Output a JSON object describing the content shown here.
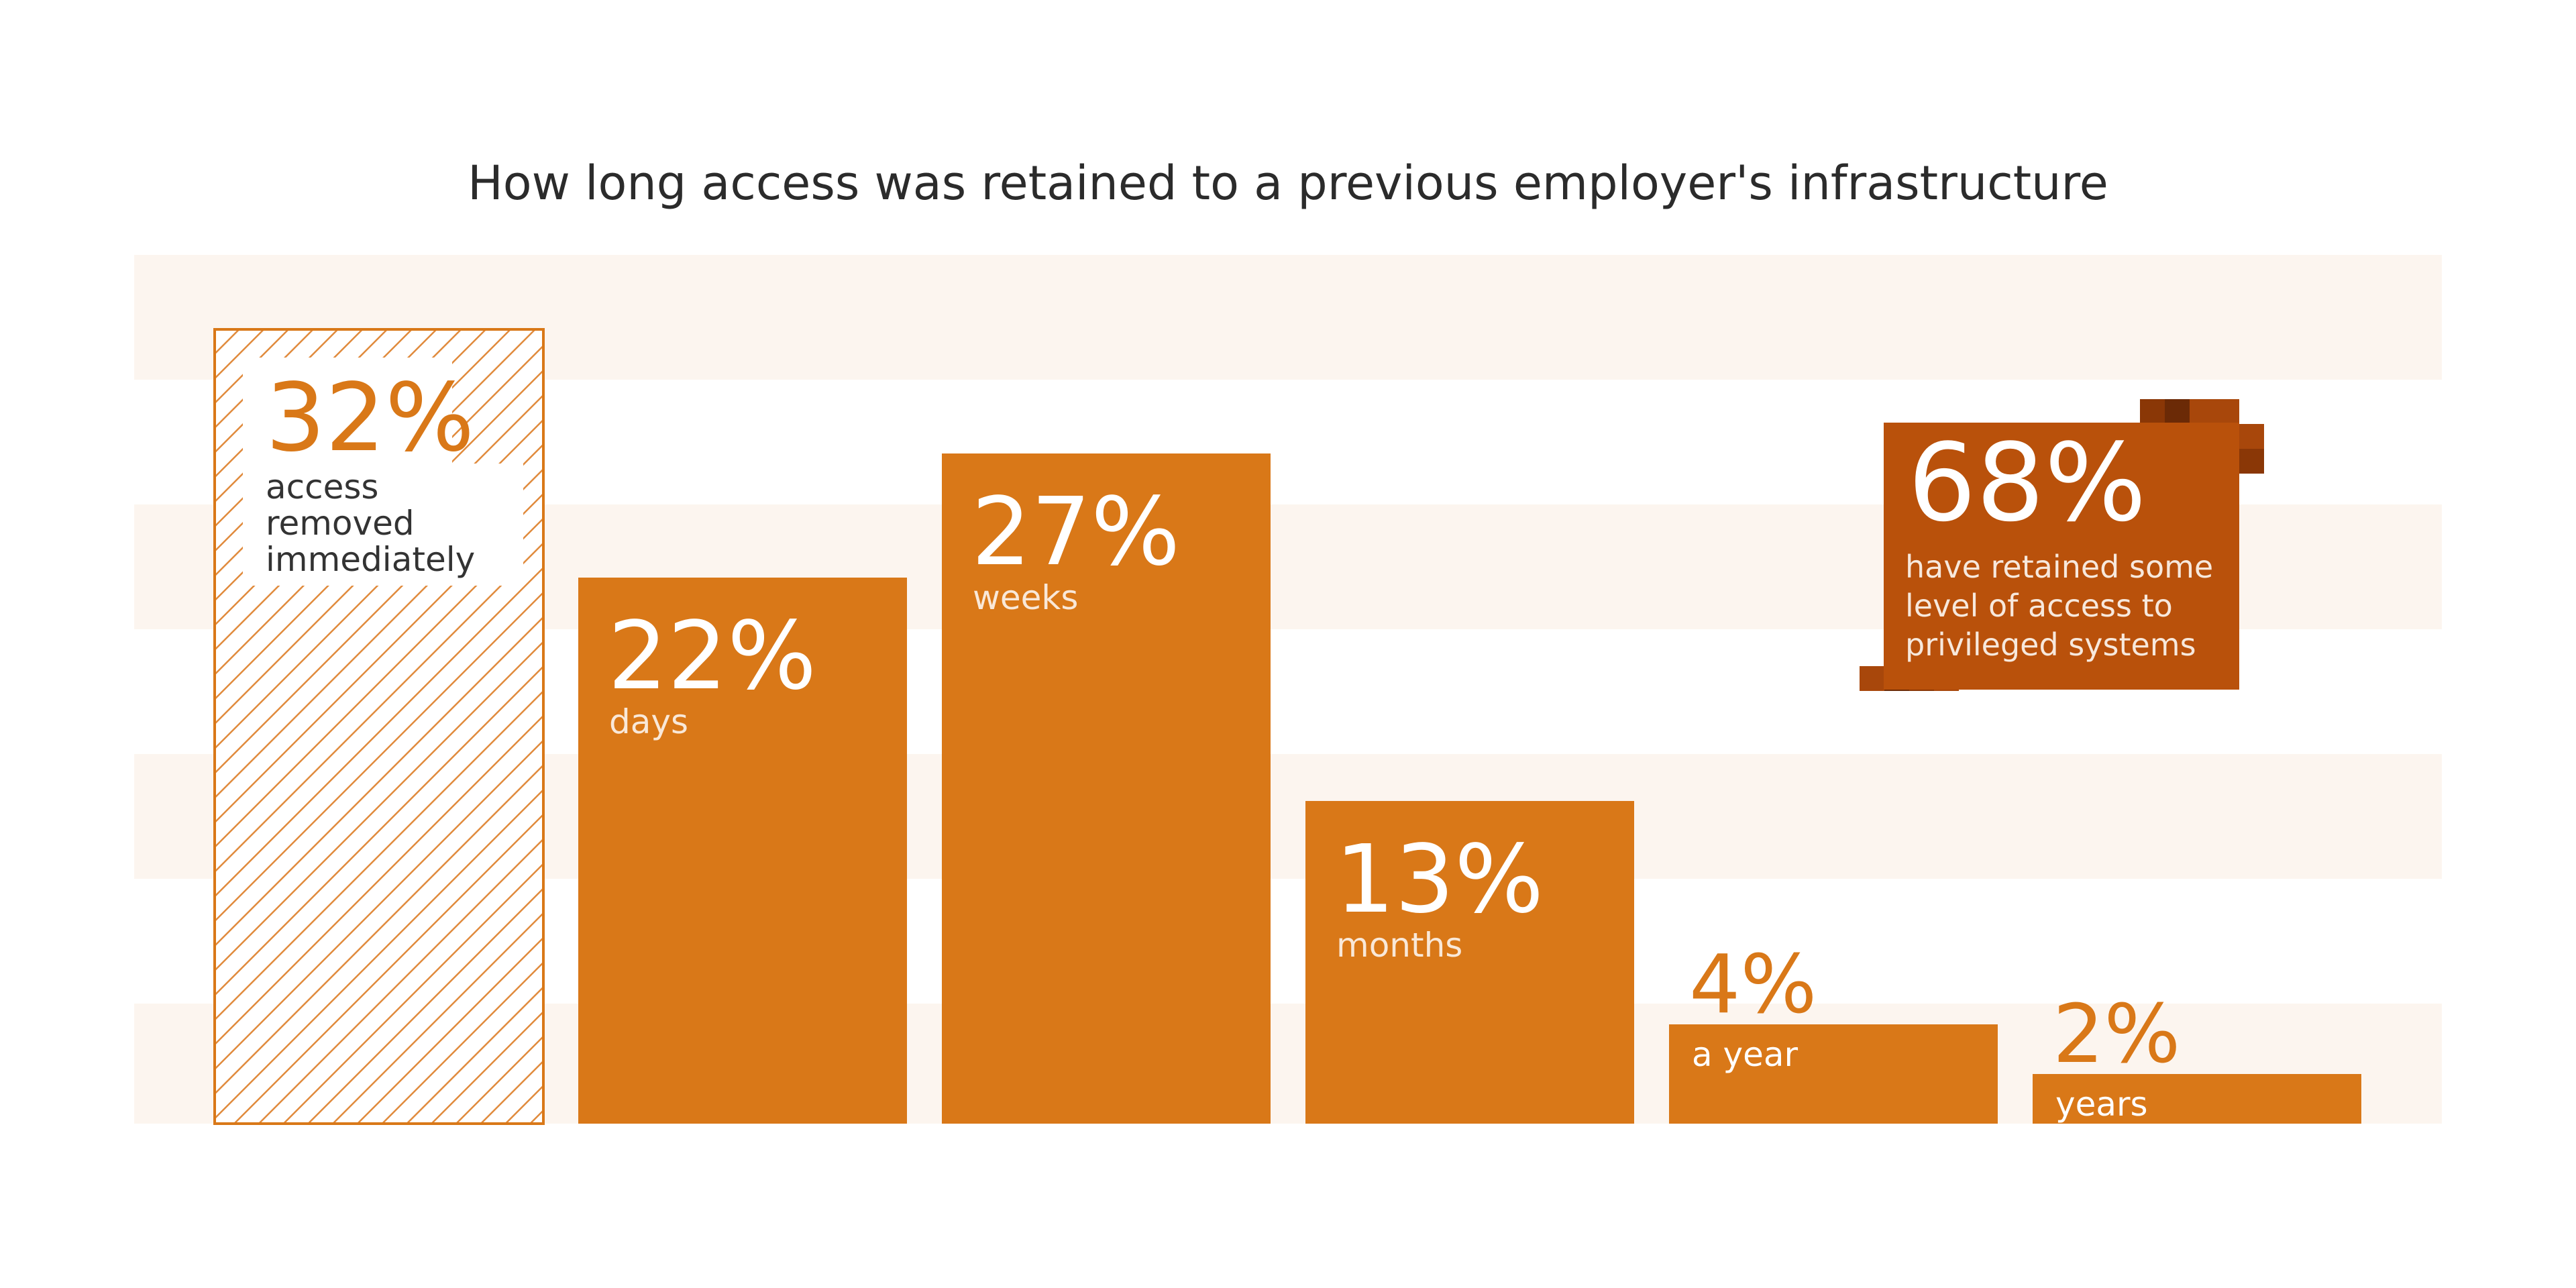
{
  "chart_data": {
    "type": "bar",
    "title": "How long access was retained to a previous employer's infrastructure",
    "xlabel": "",
    "ylabel": "",
    "ylim": [
      0,
      35
    ],
    "grid": "alternating horizontal bands",
    "categories": [
      "access removed immediately",
      "days",
      "weeks",
      "months",
      "a year",
      "years"
    ],
    "values": [
      32,
      22,
      27,
      13,
      4,
      2
    ],
    "value_labels": [
      "32%",
      "22%",
      "27%",
      "13%",
      "4%",
      "2%"
    ],
    "category_labels": [
      [
        "access",
        "removed",
        "immediately"
      ],
      [
        "days"
      ],
      [
        "weeks"
      ],
      [
        "months"
      ],
      [
        "a year"
      ],
      [
        "years"
      ]
    ],
    "styles": [
      "hatched",
      "solid",
      "solid",
      "solid",
      "solid",
      "solid"
    ]
  },
  "callout": {
    "value": "68%",
    "text": "have retained some level of access to privileged systems"
  },
  "colors": {
    "bar": "#d97818",
    "band": "#fcf5ef",
    "callout": "#b9510b",
    "hatch": "#e08a3c",
    "dark_pixels": [
      "#6b2a06",
      "#8a3706",
      "#a8470b"
    ]
  }
}
